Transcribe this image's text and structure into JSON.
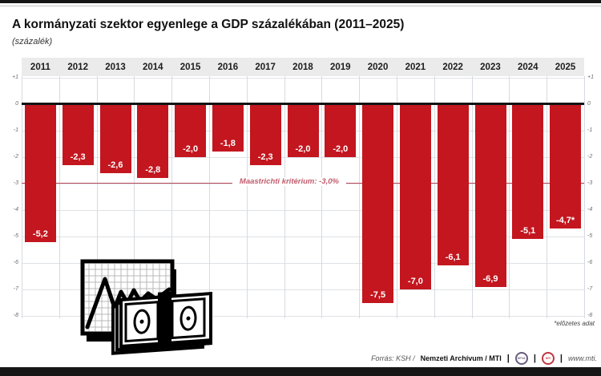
{
  "header": {
    "title": "A kormányzati szektor egyenlege a GDP százalékában (2011–2025)",
    "subtitle": "(százalék)"
  },
  "chart_data": {
    "type": "bar",
    "title": "A kormányzati szektor egyenlege a GDP százalékában (2011–2025)",
    "ylabel": "(százalék)",
    "categories": [
      "2011",
      "2012",
      "2013",
      "2014",
      "2015",
      "2016",
      "2017",
      "2018",
      "2019",
      "2020",
      "2021",
      "2022",
      "2023",
      "2024",
      "2025"
    ],
    "values": [
      -5.2,
      -2.3,
      -2.6,
      -2.8,
      -2.0,
      -1.8,
      -2.3,
      -2.0,
      -2.0,
      -7.5,
      -7.0,
      -6.1,
      -6.9,
      -5.1,
      -4.7
    ],
    "value_labels": [
      "-5,2",
      "-2,3",
      "-2,6",
      "-2,8",
      "-2,0",
      "-1,8",
      "-2,3",
      "-2,0",
      "-2,0",
      "-7,5",
      "-7,0",
      "-6,1",
      "-6,9",
      "-5,1",
      "-4,7*"
    ],
    "ylim": [
      -8,
      1
    ],
    "yticks": [
      "+1",
      "0",
      "-1",
      "-2",
      "-3",
      "-4",
      "-5",
      "-6",
      "-7",
      "-8"
    ],
    "grid": true,
    "bar_color": "#c3161f",
    "reference_line": {
      "value": -3.0,
      "label": "Maastrichti kritérium: -3,0%",
      "color": "#b64a5c"
    },
    "footnote": "*előzetes adat"
  },
  "footer": {
    "source_italic": "Forrás: KSH /",
    "source_bold": "Nemzeti Archívum / MTI",
    "separator": "|",
    "logo_mtva": "MTVA",
    "logo_mti": "MTI",
    "url": "www.mti."
  }
}
